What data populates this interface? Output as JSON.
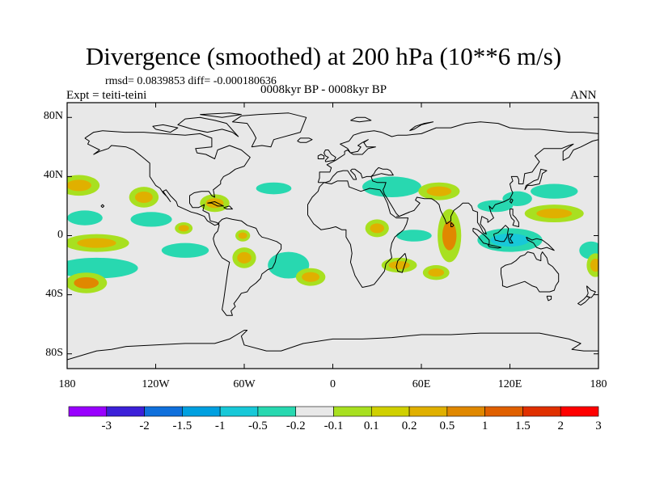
{
  "title": "Divergence (smoothed) at 200 hPa (10**6 m/s)",
  "stats_line": "rmsd= 0.0839853 diff= -0.000180636",
  "experiment": "Expt = teiti-teini",
  "period": "0008kyr BP - 0008kyr BP",
  "season": "ANN",
  "map": {
    "projection": "cylindrical equidistant",
    "lon_range": [
      -180,
      180
    ],
    "lat_range": [
      -90,
      90
    ],
    "land_fill": "#e8e8e8",
    "coast_color": "#000000"
  },
  "y_ticks": [
    {
      "lat": 80,
      "label": "80N"
    },
    {
      "lat": 40,
      "label": "40N"
    },
    {
      "lat": 0,
      "label": "0"
    },
    {
      "lat": -40,
      "label": "40S"
    },
    {
      "lat": -80,
      "label": "80S"
    }
  ],
  "x_ticks": [
    {
      "lon": -180,
      "label": "180"
    },
    {
      "lon": -120,
      "label": "120W"
    },
    {
      "lon": -60,
      "label": "60W"
    },
    {
      "lon": 0,
      "label": "0"
    },
    {
      "lon": 60,
      "label": "60E"
    },
    {
      "lon": 120,
      "label": "120E"
    },
    {
      "lon": 180,
      "label": "180"
    }
  ],
  "colorbar": {
    "colors": [
      "#9900ff",
      "#3c20d8",
      "#1070dc",
      "#00a0e0",
      "#18c8d8",
      "#28d8b0",
      "#e8e8e8",
      "#a8e020",
      "#d0d000",
      "#e0b000",
      "#e08800",
      "#e06000",
      "#e03000",
      "#ff0000"
    ],
    "labels": [
      "-3",
      "-2",
      "-1.5",
      "-1",
      "-0.5",
      "-0.2",
      "-0.1",
      "0.1",
      "0.2",
      "0.5",
      "1",
      "1.5",
      "2",
      "3"
    ]
  },
  "chart_data": {
    "type": "filled-contour map",
    "variable": "divergence difference",
    "units": "10**6 m/s",
    "levels": [
      -3,
      -2,
      -1.5,
      -1,
      -0.5,
      -0.2,
      -0.1,
      0.1,
      0.2,
      0.5,
      1,
      1.5,
      2,
      3
    ],
    "anomalies": [
      {
        "lon": -172,
        "lat": 34,
        "rlon": 14,
        "rlat": 7,
        "value": 0.3
      },
      {
        "lon": -168,
        "lat": 12,
        "rlon": 12,
        "rlat": 5,
        "value": -0.3
      },
      {
        "lon": -160,
        "lat": -5,
        "rlon": 22,
        "rlat": 6,
        "value": 0.25
      },
      {
        "lon": -160,
        "lat": -22,
        "rlon": 28,
        "rlat": 7,
        "value": -0.3
      },
      {
        "lon": -167,
        "lat": -32,
        "rlon": 14,
        "rlat": 7,
        "value": 0.8
      },
      {
        "lon": -128,
        "lat": 26,
        "rlon": 10,
        "rlat": 7,
        "value": 0.3
      },
      {
        "lon": -123,
        "lat": 11,
        "rlon": 14,
        "rlat": 5,
        "value": -0.3
      },
      {
        "lon": -101,
        "lat": 5,
        "rlon": 6,
        "rlat": 4,
        "value": 0.3
      },
      {
        "lon": -100,
        "lat": -10,
        "rlon": 16,
        "rlat": 5,
        "value": -0.3
      },
      {
        "lon": -80,
        "lat": 22,
        "rlon": 10,
        "rlat": 6,
        "value": 0.3
      },
      {
        "lon": -61,
        "lat": 0,
        "rlon": 5,
        "rlat": 4,
        "value": 0.3
      },
      {
        "lon": -60,
        "lat": -15,
        "rlon": 8,
        "rlat": 7,
        "value": 0.3
      },
      {
        "lon": -30,
        "lat": -20,
        "rlon": 14,
        "rlat": 9,
        "value": -0.3
      },
      {
        "lon": -15,
        "lat": -28,
        "rlon": 10,
        "rlat": 6,
        "value": 0.3
      },
      {
        "lon": -40,
        "lat": 32,
        "rlon": 12,
        "rlat": 4,
        "value": -0.3
      },
      {
        "lon": 40,
        "lat": 33,
        "rlon": 20,
        "rlat": 7,
        "value": -0.3
      },
      {
        "lon": 72,
        "lat": 30,
        "rlon": 14,
        "rlat": 6,
        "value": 0.3
      },
      {
        "lon": 55,
        "lat": 0,
        "rlon": 12,
        "rlat": 4,
        "value": -0.3
      },
      {
        "lon": 30,
        "lat": 5,
        "rlon": 8,
        "rlat": 6,
        "value": 0.3
      },
      {
        "lon": 45,
        "lat": -20,
        "rlon": 12,
        "rlat": 5,
        "value": 0.3
      },
      {
        "lon": 70,
        "lat": -25,
        "rlon": 9,
        "rlat": 5,
        "value": 0.3
      },
      {
        "lon": 79,
        "lat": 0,
        "rlon": 8,
        "rlat": 18,
        "value": 0.8
      },
      {
        "lon": 110,
        "lat": 20,
        "rlon": 12,
        "rlat": 4,
        "value": -0.3
      },
      {
        "lon": 125,
        "lat": 25,
        "rlon": 10,
        "rlat": 5,
        "value": -0.3
      },
      {
        "lon": 150,
        "lat": 15,
        "rlon": 20,
        "rlat": 6,
        "value": 0.3
      },
      {
        "lon": 150,
        "lat": 30,
        "rlon": 16,
        "rlat": 5,
        "value": -0.3
      },
      {
        "lon": 120,
        "lat": -3,
        "rlon": 22,
        "rlat": 8,
        "value": -0.8
      },
      {
        "lon": 175,
        "lat": -10,
        "rlon": 8,
        "rlat": 6,
        "value": -0.3
      },
      {
        "lon": 178,
        "lat": -20,
        "rlon": 6,
        "rlat": 8,
        "value": 0.3
      }
    ]
  }
}
